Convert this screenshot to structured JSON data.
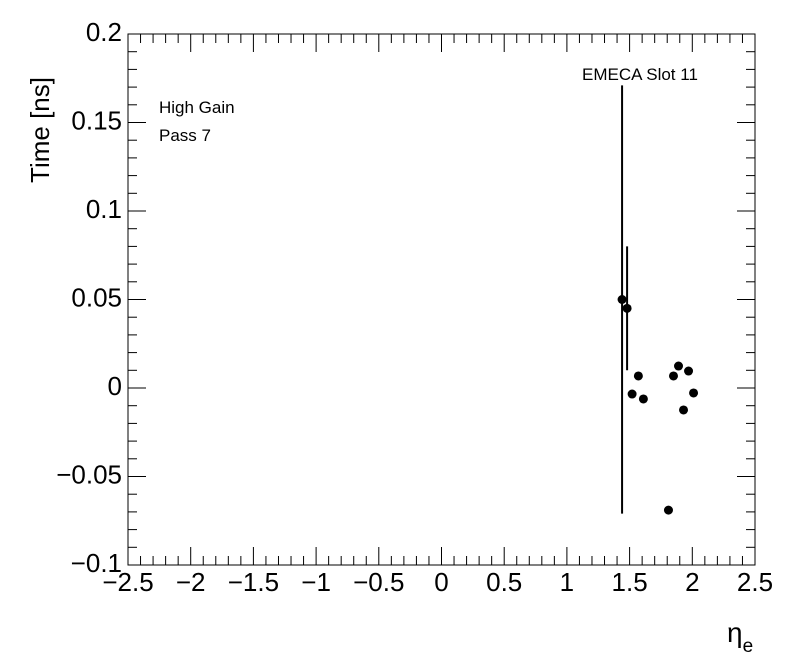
{
  "chart_data": {
    "type": "scatter",
    "xlabel": {
      "symbol": "η",
      "subscript": "e"
    },
    "ylabel": "Time [ns]",
    "annotations": [
      "EMECA Slot 11",
      "High Gain",
      "Pass 7"
    ],
    "x": [
      1.44,
      1.48,
      1.52,
      1.57,
      1.61,
      1.81,
      1.85,
      1.89,
      1.93,
      1.97,
      2.01
    ],
    "series": [
      {
        "name": "EMECA Slot 11",
        "color": "#000000",
        "values": [
          0.05,
          0.045,
          -0.0034,
          0.0068,
          -0.0062,
          -0.069,
          0.0068,
          0.0124,
          -0.0124,
          0.0096,
          -0.0028
        ],
        "errors": [
          0.121,
          0.035,
          null,
          null,
          null,
          null,
          null,
          null,
          null,
          null,
          null
        ]
      }
    ],
    "xlim": [
      -2.5,
      2.5
    ],
    "xticks": [
      {
        "value": -2.5,
        "label": "−2.5"
      },
      {
        "value": -2,
        "label": "−2"
      },
      {
        "value": -1.5,
        "label": "−1.5"
      },
      {
        "value": -1,
        "label": "−1"
      },
      {
        "value": -0.5,
        "label": "−0.5"
      },
      0,
      0.5,
      1,
      1.5,
      2,
      2.5
    ],
    "ylim": [
      -0.1,
      0.2
    ],
    "yticks": [
      {
        "value": -0.1,
        "label": "−0.1"
      },
      {
        "value": -0.05,
        "label": "−0.05"
      },
      0,
      0.05,
      0.1,
      0.15,
      0.2
    ],
    "grid": false
  }
}
